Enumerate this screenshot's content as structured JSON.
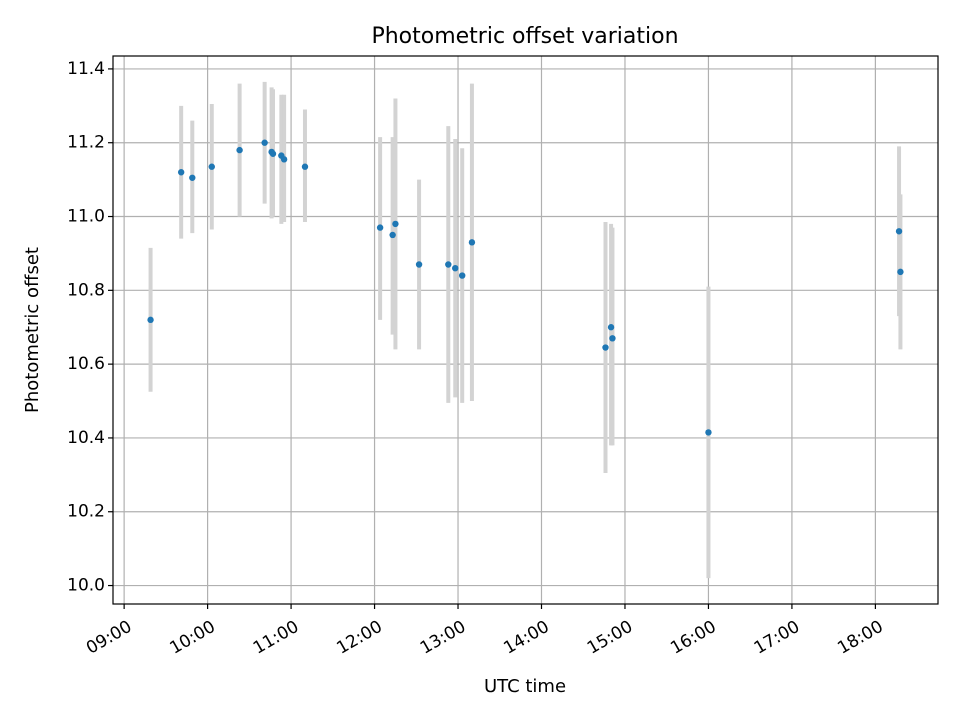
{
  "chart_data": {
    "type": "scatter",
    "title": "Photometric offset variation",
    "xlabel": "UTC time",
    "ylabel": "Photometric offset",
    "xlim": [
      "08:52",
      "18:45"
    ],
    "ylim": [
      9.95,
      11.435
    ],
    "grid": true,
    "colors": {
      "marker": "#1f77b4",
      "errorbar": "#d3d3d3",
      "grid": "#b0b0b0"
    },
    "x_ticks": [
      "09:00",
      "10:00",
      "11:00",
      "12:00",
      "13:00",
      "14:00",
      "15:00",
      "16:00",
      "17:00",
      "18:00"
    ],
    "y_ticks": [
      "10.0",
      "10.2",
      "10.4",
      "10.6",
      "10.8",
      "11.0",
      "11.2",
      "11.4"
    ],
    "points": [
      {
        "time": "09:19",
        "y": 10.72,
        "ylo": 10.525,
        "yhi": 10.915
      },
      {
        "time": "09:41",
        "y": 11.12,
        "ylo": 10.94,
        "yhi": 11.3
      },
      {
        "time": "09:49",
        "y": 11.105,
        "ylo": 10.955,
        "yhi": 11.26
      },
      {
        "time": "10:03",
        "y": 11.135,
        "ylo": 10.965,
        "yhi": 11.305
      },
      {
        "time": "10:23",
        "y": 11.18,
        "ylo": 11.0,
        "yhi": 11.36
      },
      {
        "time": "10:41",
        "y": 11.2,
        "ylo": 11.035,
        "yhi": 11.365
      },
      {
        "time": "10:46",
        "y": 11.175,
        "ylo": 10.995,
        "yhi": 11.35
      },
      {
        "time": "10:47",
        "y": 11.17,
        "ylo": 11.0,
        "yhi": 11.345
      },
      {
        "time": "10:53",
        "y": 11.165,
        "ylo": 10.98,
        "yhi": 11.33
      },
      {
        "time": "10:55",
        "y": 11.155,
        "ylo": 10.985,
        "yhi": 11.33
      },
      {
        "time": "11:10",
        "y": 11.135,
        "ylo": 10.985,
        "yhi": 11.29
      },
      {
        "time": "12:04",
        "y": 10.97,
        "ylo": 10.72,
        "yhi": 11.215
      },
      {
        "time": "12:13",
        "y": 10.95,
        "ylo": 10.68,
        "yhi": 11.215
      },
      {
        "time": "12:15",
        "y": 10.98,
        "ylo": 10.64,
        "yhi": 11.32
      },
      {
        "time": "12:32",
        "y": 10.87,
        "ylo": 10.64,
        "yhi": 11.1
      },
      {
        "time": "12:53",
        "y": 10.87,
        "ylo": 10.495,
        "yhi": 11.245
      },
      {
        "time": "12:58",
        "y": 10.86,
        "ylo": 10.51,
        "yhi": 11.21
      },
      {
        "time": "13:03",
        "y": 10.84,
        "ylo": 10.495,
        "yhi": 11.185
      },
      {
        "time": "13:10",
        "y": 10.93,
        "ylo": 10.5,
        "yhi": 11.36
      },
      {
        "time": "14:46",
        "y": 10.645,
        "ylo": 10.305,
        "yhi": 10.985
      },
      {
        "time": "14:50",
        "y": 10.7,
        "ylo": 10.38,
        "yhi": 10.98
      },
      {
        "time": "14:51",
        "y": 10.67,
        "ylo": 10.38,
        "yhi": 10.97
      },
      {
        "time": "16:00",
        "y": 10.415,
        "ylo": 10.02,
        "yhi": 10.81
      },
      {
        "time": "18:17",
        "y": 10.96,
        "ylo": 10.73,
        "yhi": 11.19
      },
      {
        "time": "18:18",
        "y": 10.85,
        "ylo": 10.64,
        "yhi": 11.06
      }
    ]
  }
}
